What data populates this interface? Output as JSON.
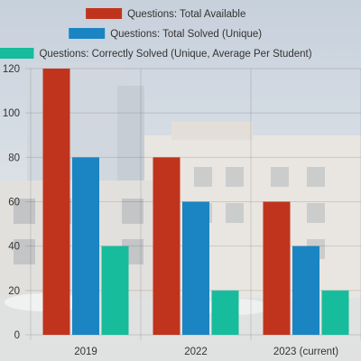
{
  "chart_data": {
    "type": "bar",
    "categories": [
      "2019",
      "2022",
      "2023 (current)"
    ],
    "series": [
      {
        "name": "Questions: Total Available",
        "values": [
          120,
          80,
          60
        ],
        "color": "#c0341d"
      },
      {
        "name": "Questions: Total Solved (Unique)",
        "values": [
          80,
          60,
          40
        ],
        "color": "#1a85c2"
      },
      {
        "name": "Questions: Correctly Solved (Unique, Average Per Student)",
        "values": [
          40,
          20,
          20
        ],
        "color": "#16bc9c"
      }
    ],
    "y_ticks": [
      "0",
      "20",
      "40",
      "60",
      "80",
      "100",
      "120"
    ],
    "ylim": [
      0,
      120
    ],
    "grid": true,
    "legend_position": "top"
  }
}
